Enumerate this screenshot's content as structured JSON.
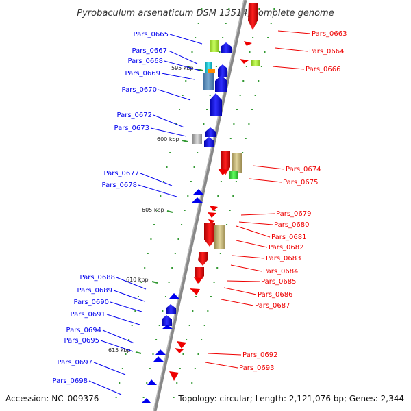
{
  "title": "Pyrobaculum arsenaticum DSM 13514, complete genome",
  "accession": "Accession: NC_009376",
  "summary": "Topology: circular; Length: 2,121,076 bp; Genes: 2,344",
  "colors": {
    "forward": "#0000ee",
    "reverse": "#ee0000",
    "backbone": "#888888",
    "tick": "#339933"
  },
  "scale_ticks": [
    "595 kbp",
    "600 kbp",
    "605 kbp",
    "610 kbp",
    "615 kbp"
  ],
  "left_labels": [
    "Pars_0665",
    "Pars_0667",
    "Pars_0668",
    "Pars_0669",
    "Pars_0670",
    "Pars_0672",
    "Pars_0673",
    "Pars_0677",
    "Pars_0678",
    "Pars_0688",
    "Pars_0689",
    "Pars_0690",
    "Pars_0691",
    "Pars_0694",
    "Pars_0695",
    "Pars_0697",
    "Pars_0698"
  ],
  "right_labels": [
    "Pars_0663",
    "Pars_0664",
    "Pars_0666",
    "Pars_0674",
    "Pars_0675",
    "Pars_0679",
    "Pars_0680",
    "Pars_0681",
    "Pars_0682",
    "Pars_0683",
    "Pars_0684",
    "Pars_0685",
    "Pars_0686",
    "Pars_0687",
    "Pars_0692",
    "Pars_0693"
  ]
}
